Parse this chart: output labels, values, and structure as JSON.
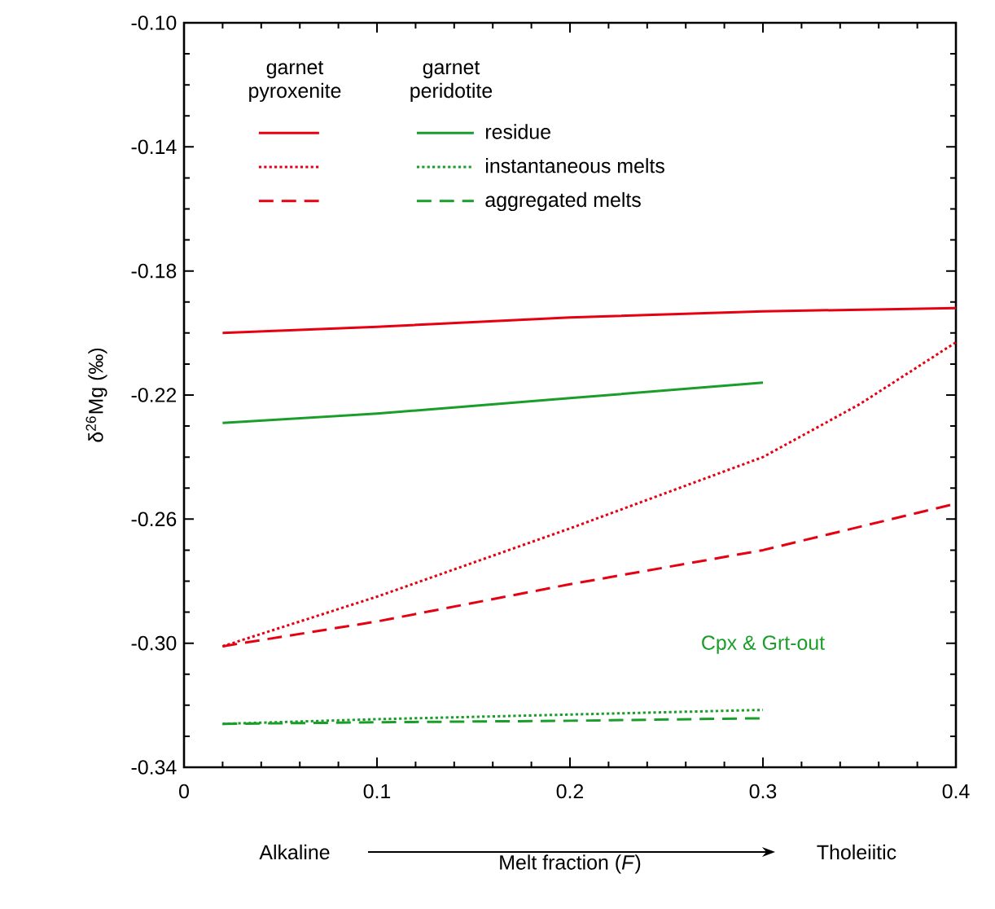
{
  "chart_data": {
    "type": "line",
    "xlabel": "Melt fraction (*F*)",
    "ylabel": "δ$^{26}$Mg (‰)",
    "xlim": [
      0,
      0.4
    ],
    "ylim": [
      -0.34,
      -0.1
    ],
    "xticks": [
      0,
      0.1,
      0.2,
      0.3,
      0.4
    ],
    "yticks": [
      {
        "value": -0.34,
        "label": "-0.34"
      },
      {
        "value": -0.3,
        "label": "-0.30"
      },
      {
        "value": -0.26,
        "label": "-0.26"
      },
      {
        "value": -0.22,
        "label": "-0.22"
      },
      {
        "value": -0.18,
        "label": "-0.18"
      },
      {
        "value": -0.14,
        "label": "-0.14"
      },
      {
        "value": -0.1,
        "label": "-0.10"
      }
    ],
    "grid": false,
    "legend": "top left",
    "marker": "none",
    "series": [
      {
        "color": "#e60012",
        "line_style": "solid",
        "x": [
          0.02,
          0.1,
          0.2,
          0.3,
          0.4
        ],
        "values": [
          -0.2,
          -0.198,
          -0.195,
          -0.193,
          -0.192
        ]
      },
      {
        "color": "#e60012",
        "line_style": "dotted",
        "x": [
          0.02,
          0.1,
          0.2,
          0.3,
          0.35,
          0.4
        ],
        "values": [
          -0.301,
          -0.285,
          -0.263,
          -0.24,
          -0.223,
          -0.203
        ]
      },
      {
        "color": "#e60012",
        "line_style": "dashed",
        "x": [
          0.02,
          0.1,
          0.2,
          0.3,
          0.4
        ],
        "values": [
          -0.301,
          -0.293,
          -0.281,
          -0.27,
          -0.255
        ]
      },
      {
        "name": "residue",
        "color": "#1a9e2a",
        "line_style": "solid",
        "x": [
          0.02,
          0.1,
          0.2,
          0.3
        ],
        "values": [
          -0.229,
          -0.226,
          -0.221,
          -0.216
        ]
      },
      {
        "name": "instantaneous melts",
        "color": "#1a9e2a",
        "line_style": "dotted",
        "x": [
          0.02,
          0.1,
          0.2,
          0.3
        ],
        "values": [
          -0.326,
          -0.3245,
          -0.323,
          -0.3215
        ]
      },
      {
        "name": "aggregated melts",
        "color": "#1a9e2a",
        "line_style": "dashed",
        "x": [
          0.02,
          0.1,
          0.2,
          0.3
        ],
        "values": [
          -0.326,
          -0.3255,
          -0.325,
          -0.3242
        ]
      }
    ],
    "annotations": [
      "garnet pyroxenite",
      "garnet peridotite",
      {
        "text": "Cpx & Grt-out",
        "x": 0.3,
        "y": -0.3215
      },
      "Alkaline",
      "Tholeiitic"
    ]
  }
}
